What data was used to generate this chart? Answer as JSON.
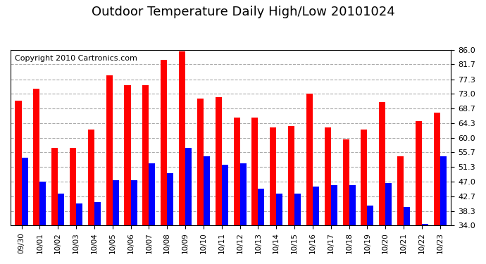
{
  "title": "Outdoor Temperature Daily High/Low 20101024",
  "copyright_text": "Copyright 2010 Cartronics.com",
  "dates": [
    "09/30",
    "10/01",
    "10/02",
    "10/03",
    "10/04",
    "10/05",
    "10/06",
    "10/07",
    "10/08",
    "10/09",
    "10/10",
    "10/11",
    "10/12",
    "10/13",
    "10/14",
    "10/15",
    "10/16",
    "10/17",
    "10/18",
    "10/19",
    "10/20",
    "10/21",
    "10/22",
    "10/23"
  ],
  "highs": [
    71.0,
    74.5,
    57.0,
    57.0,
    62.5,
    78.5,
    75.5,
    75.5,
    83.0,
    85.5,
    71.5,
    72.0,
    66.0,
    66.0,
    63.0,
    63.5,
    73.0,
    63.0,
    59.5,
    62.5,
    70.5,
    54.5,
    65.0,
    67.5
  ],
  "lows": [
    54.0,
    47.0,
    43.5,
    40.5,
    41.0,
    47.5,
    47.5,
    52.5,
    49.5,
    57.0,
    54.5,
    52.0,
    52.5,
    45.0,
    43.5,
    43.5,
    45.5,
    46.0,
    46.0,
    40.0,
    46.5,
    39.5,
    34.5,
    54.5
  ],
  "high_color": "#ff0000",
  "low_color": "#0000ff",
  "ylim_min": 34.0,
  "ylim_max": 86.0,
  "yticks": [
    34.0,
    38.3,
    42.7,
    47.0,
    51.3,
    55.7,
    60.0,
    64.3,
    68.7,
    73.0,
    77.3,
    81.7,
    86.0
  ],
  "background_color": "#ffffff",
  "plot_bg_color": "#ffffff",
  "grid_color": "#aaaaaa",
  "title_fontsize": 13,
  "copyright_fontsize": 8,
  "bar_width": 0.35
}
